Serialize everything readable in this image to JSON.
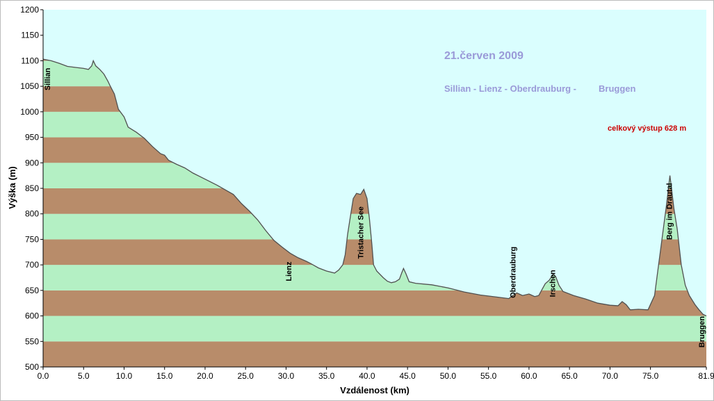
{
  "chart_data": {
    "type": "area",
    "xlabel": "Vzdálenost   (km)",
    "ylabel": "Výška (m)",
    "xlim": [
      0,
      81.9
    ],
    "ylim": [
      500,
      1200
    ],
    "x_ticks": [
      "0.0",
      "5.0",
      "10.0",
      "15.0",
      "20.0",
      "25.0",
      "30.0",
      "35.0",
      "40.0",
      "45.0",
      "50.0",
      "55.0",
      "60.0",
      "65.0",
      "70.0",
      "75.0",
      "81.9"
    ],
    "y_ticks": [
      "500",
      "550",
      "600",
      "650",
      "700",
      "750",
      "800",
      "850",
      "900",
      "950",
      "1000",
      "1050",
      "1100",
      "1150",
      "1200"
    ],
    "bands": {
      "step": 50,
      "color_odd": "#b88c6a",
      "color_even": "#b4f0c4"
    },
    "background": "#dafefe",
    "profile": [
      [
        0.0,
        1103
      ],
      [
        1.0,
        1100
      ],
      [
        2.0,
        1095
      ],
      [
        3.0,
        1089
      ],
      [
        4.0,
        1087
      ],
      [
        5.0,
        1085
      ],
      [
        5.6,
        1083
      ],
      [
        6.0,
        1090
      ],
      [
        6.2,
        1100
      ],
      [
        6.5,
        1090
      ],
      [
        7.0,
        1083
      ],
      [
        7.5,
        1074
      ],
      [
        8.0,
        1060
      ],
      [
        8.3,
        1050
      ],
      [
        8.8,
        1035
      ],
      [
        9.3,
        1005
      ],
      [
        10.0,
        990
      ],
      [
        10.5,
        970
      ],
      [
        11.5,
        960
      ],
      [
        12.5,
        948
      ],
      [
        13.5,
        932
      ],
      [
        14.5,
        918
      ],
      [
        15.0,
        915
      ],
      [
        15.5,
        905
      ],
      [
        16.5,
        897
      ],
      [
        17.5,
        890
      ],
      [
        18.5,
        880
      ],
      [
        19.5,
        872
      ],
      [
        20.5,
        864
      ],
      [
        21.5,
        856
      ],
      [
        22.5,
        847
      ],
      [
        23.5,
        838
      ],
      [
        24.5,
        820
      ],
      [
        25.5,
        805
      ],
      [
        26.5,
        788
      ],
      [
        27.5,
        767
      ],
      [
        28.5,
        748
      ],
      [
        29.5,
        735
      ],
      [
        30.5,
        723
      ],
      [
        31.5,
        714
      ],
      [
        32.5,
        707
      ],
      [
        33.0,
        703
      ],
      [
        34.0,
        694
      ],
      [
        35.0,
        688
      ],
      [
        36.0,
        684
      ],
      [
        36.5,
        690
      ],
      [
        37.0,
        700
      ],
      [
        37.3,
        720
      ],
      [
        37.6,
        760
      ],
      [
        38.0,
        800
      ],
      [
        38.3,
        830
      ],
      [
        38.7,
        840
      ],
      [
        39.2,
        838
      ],
      [
        39.6,
        848
      ],
      [
        40.0,
        830
      ],
      [
        40.3,
        790
      ],
      [
        40.6,
        740
      ],
      [
        40.8,
        700
      ],
      [
        41.2,
        688
      ],
      [
        42.0,
        675
      ],
      [
        42.5,
        668
      ],
      [
        43.0,
        665
      ],
      [
        43.5,
        667
      ],
      [
        44.0,
        672
      ],
      [
        44.3,
        685
      ],
      [
        44.5,
        693
      ],
      [
        44.8,
        683
      ],
      [
        45.2,
        667
      ],
      [
        46.0,
        664
      ],
      [
        48.0,
        661
      ],
      [
        50.0,
        655
      ],
      [
        52.0,
        647
      ],
      [
        54.0,
        641
      ],
      [
        56.0,
        637
      ],
      [
        57.5,
        634
      ],
      [
        58.0,
        640
      ],
      [
        58.5,
        645
      ],
      [
        59.2,
        640
      ],
      [
        60.0,
        643
      ],
      [
        60.7,
        638
      ],
      [
        61.2,
        640
      ],
      [
        62.0,
        663
      ],
      [
        62.5,
        670
      ],
      [
        63.0,
        682
      ],
      [
        63.3,
        677
      ],
      [
        63.7,
        660
      ],
      [
        64.2,
        648
      ],
      [
        65.5,
        640
      ],
      [
        67.0,
        633
      ],
      [
        68.5,
        625
      ],
      [
        70.0,
        621
      ],
      [
        71.0,
        620
      ],
      [
        71.5,
        628
      ],
      [
        72.0,
        622
      ],
      [
        72.5,
        612
      ],
      [
        73.5,
        613
      ],
      [
        74.7,
        612
      ],
      [
        75.5,
        640
      ],
      [
        76.0,
        700
      ],
      [
        76.5,
        760
      ],
      [
        77.0,
        820
      ],
      [
        77.4,
        875
      ],
      [
        77.9,
        810
      ],
      [
        78.3,
        770
      ],
      [
        78.8,
        700
      ],
      [
        79.3,
        660
      ],
      [
        79.8,
        640
      ],
      [
        80.5,
        622
      ],
      [
        81.0,
        612
      ],
      [
        81.5,
        603
      ],
      [
        81.9,
        600
      ]
    ],
    "place_labels": [
      {
        "text": "Sillian",
        "x": 0.5,
        "y": 1042
      },
      {
        "text": "Tristacher See",
        "x": 39.2,
        "y": 712
      },
      {
        "text": "Lienz",
        "x": 30.3,
        "y": 668
      },
      {
        "text": "Oberdrauburg",
        "x": 58.0,
        "y": 635
      },
      {
        "text": "Irschen",
        "x": 62.9,
        "y": 637
      },
      {
        "text": "Berg im Drautal",
        "x": 77.3,
        "y": 749
      },
      {
        "text": "Bruggen",
        "x": 81.3,
        "y": 538
      }
    ],
    "annotations": {
      "title": "21.červen 2009",
      "route": "Sillian - Lienz - Oberdrauburg -",
      "route_end": "Bruggen",
      "climb": "celkový výstup  628 m",
      "title_color": "#9a9ad8",
      "climb_color": "#cc0000"
    }
  }
}
